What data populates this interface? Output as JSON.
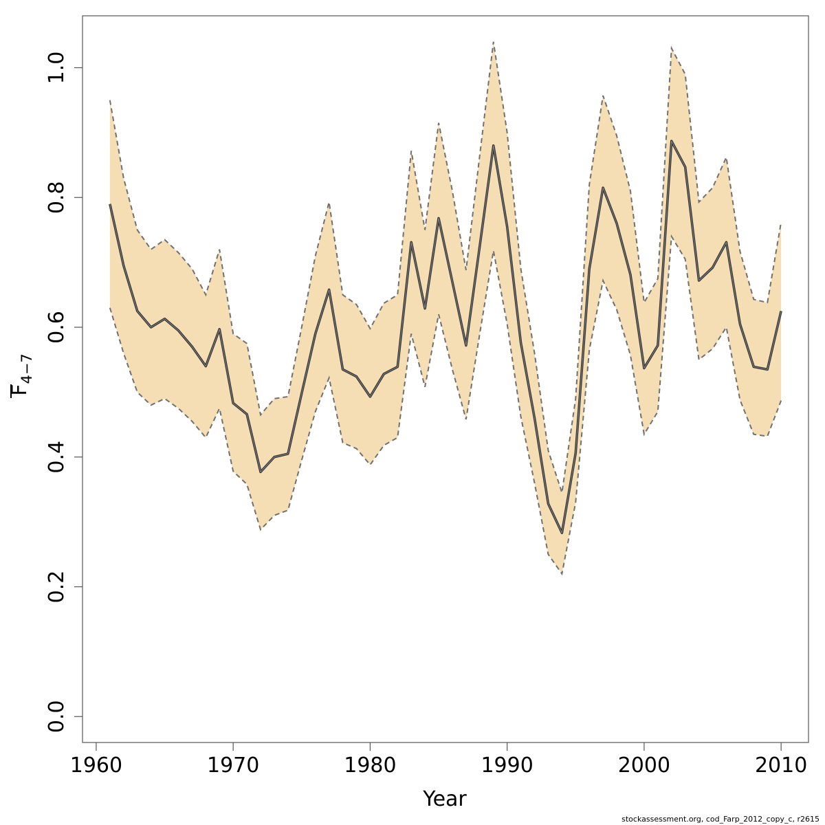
{
  "chart_data": {
    "type": "line",
    "xlabel": "Year",
    "ylabel": {
      "base": "F",
      "subscript": "4−7"
    },
    "xlim": [
      1959,
      2012
    ],
    "ylim": [
      -0.04,
      1.08
    ],
    "x_ticks": [
      1960,
      1970,
      1980,
      1990,
      2000,
      2010
    ],
    "y_ticks": [
      0.0,
      0.2,
      0.4,
      0.6,
      0.8,
      1.0
    ],
    "x_tick_labels": [
      "1960",
      "1970",
      "1980",
      "1990",
      "2000",
      "2010"
    ],
    "y_tick_labels": [
      "0.0",
      "0.2",
      "0.4",
      "0.6",
      "0.8",
      "1.0"
    ],
    "grid": false,
    "band_color": "#F5DEB3",
    "line_color": "#333333",
    "band_border_color": "#707070",
    "x": [
      1961,
      1962,
      1963,
      1964,
      1965,
      1966,
      1967,
      1968,
      1969,
      1970,
      1971,
      1972,
      1973,
      1974,
      1975,
      1976,
      1977,
      1978,
      1979,
      1980,
      1981,
      1982,
      1983,
      1984,
      1985,
      1986,
      1987,
      1988,
      1989,
      1990,
      1991,
      1992,
      1993,
      1994,
      1995,
      1996,
      1997,
      1998,
      1999,
      2000,
      2001,
      2002,
      2003,
      2004,
      2005,
      2006,
      2007,
      2008,
      2009,
      2010
    ],
    "estimate": [
      0.79,
      0.695,
      0.625,
      0.6,
      0.613,
      0.595,
      0.57,
      0.54,
      0.597,
      0.483,
      0.466,
      0.377,
      0.4,
      0.405,
      0.498,
      0.59,
      0.658,
      0.535,
      0.524,
      0.493,
      0.528,
      0.539,
      0.731,
      0.629,
      0.768,
      0.67,
      0.572,
      0.725,
      0.88,
      0.755,
      0.576,
      0.46,
      0.328,
      0.283,
      0.406,
      0.69,
      0.815,
      0.76,
      0.681,
      0.537,
      0.572,
      0.887,
      0.847,
      0.672,
      0.692,
      0.731,
      0.605,
      0.539,
      0.535,
      0.625
    ],
    "upper": [
      0.95,
      0.83,
      0.75,
      0.72,
      0.735,
      0.715,
      0.69,
      0.65,
      0.72,
      0.59,
      0.575,
      0.465,
      0.49,
      0.493,
      0.6,
      0.71,
      0.793,
      0.65,
      0.635,
      0.598,
      0.637,
      0.65,
      0.872,
      0.75,
      0.915,
      0.81,
      0.688,
      0.865,
      1.04,
      0.9,
      0.69,
      0.56,
      0.41,
      0.345,
      0.49,
      0.82,
      0.957,
      0.895,
      0.81,
      0.638,
      0.675,
      1.03,
      0.99,
      0.793,
      0.815,
      0.862,
      0.717,
      0.643,
      0.638,
      0.762
    ],
    "lower": [
      0.63,
      0.56,
      0.5,
      0.48,
      0.49,
      0.475,
      0.455,
      0.43,
      0.475,
      0.378,
      0.358,
      0.288,
      0.31,
      0.318,
      0.395,
      0.47,
      0.522,
      0.422,
      0.413,
      0.388,
      0.418,
      0.43,
      0.59,
      0.508,
      0.62,
      0.535,
      0.458,
      0.59,
      0.718,
      0.605,
      0.462,
      0.36,
      0.25,
      0.22,
      0.33,
      0.565,
      0.672,
      0.627,
      0.557,
      0.435,
      0.47,
      0.74,
      0.705,
      0.55,
      0.567,
      0.6,
      0.488,
      0.435,
      0.432,
      0.487
    ]
  },
  "footer": "stockassessment.org, cod_Farp_2012_copy_c, r2615"
}
